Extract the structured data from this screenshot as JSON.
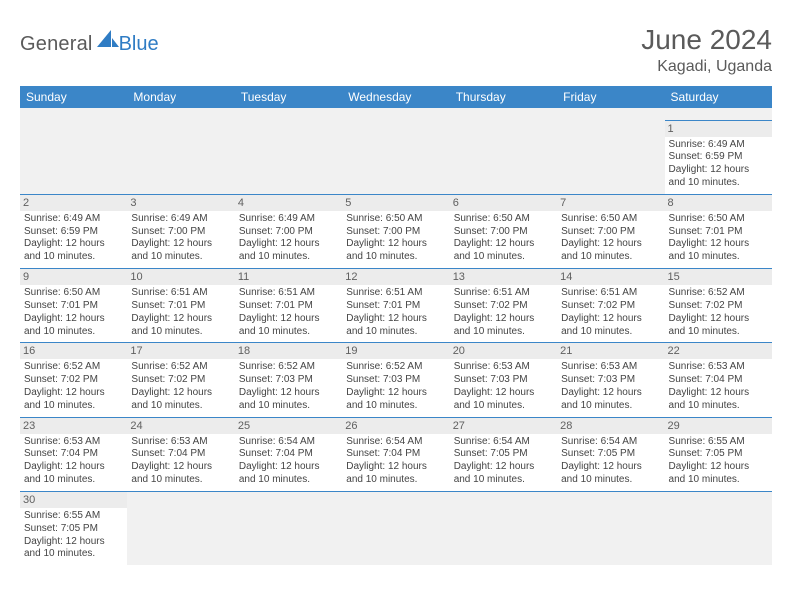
{
  "logo": {
    "text1": "General",
    "text2": "Blue",
    "sail_color": "#2f7cc4"
  },
  "title": "June 2024",
  "location": "Kagadi, Uganda",
  "header": {
    "bg": "#3b86c8",
    "fg": "#ffffff",
    "days": [
      "Sunday",
      "Monday",
      "Tuesday",
      "Wednesday",
      "Thursday",
      "Friday",
      "Saturday"
    ]
  },
  "cell_border_color": "#3b86c8",
  "daynum_bg": "#ececec",
  "blank_bg": "#f1f1f1",
  "weeks": [
    [
      null,
      null,
      null,
      null,
      null,
      null,
      {
        "d": "1",
        "sr": "6:49 AM",
        "ss": "6:59 PM",
        "dl": "12 hours and 10 minutes."
      }
    ],
    [
      {
        "d": "2",
        "sr": "6:49 AM",
        "ss": "6:59 PM",
        "dl": "12 hours and 10 minutes."
      },
      {
        "d": "3",
        "sr": "6:49 AM",
        "ss": "7:00 PM",
        "dl": "12 hours and 10 minutes."
      },
      {
        "d": "4",
        "sr": "6:49 AM",
        "ss": "7:00 PM",
        "dl": "12 hours and 10 minutes."
      },
      {
        "d": "5",
        "sr": "6:50 AM",
        "ss": "7:00 PM",
        "dl": "12 hours and 10 minutes."
      },
      {
        "d": "6",
        "sr": "6:50 AM",
        "ss": "7:00 PM",
        "dl": "12 hours and 10 minutes."
      },
      {
        "d": "7",
        "sr": "6:50 AM",
        "ss": "7:00 PM",
        "dl": "12 hours and 10 minutes."
      },
      {
        "d": "8",
        "sr": "6:50 AM",
        "ss": "7:01 PM",
        "dl": "12 hours and 10 minutes."
      }
    ],
    [
      {
        "d": "9",
        "sr": "6:50 AM",
        "ss": "7:01 PM",
        "dl": "12 hours and 10 minutes."
      },
      {
        "d": "10",
        "sr": "6:51 AM",
        "ss": "7:01 PM",
        "dl": "12 hours and 10 minutes."
      },
      {
        "d": "11",
        "sr": "6:51 AM",
        "ss": "7:01 PM",
        "dl": "12 hours and 10 minutes."
      },
      {
        "d": "12",
        "sr": "6:51 AM",
        "ss": "7:01 PM",
        "dl": "12 hours and 10 minutes."
      },
      {
        "d": "13",
        "sr": "6:51 AM",
        "ss": "7:02 PM",
        "dl": "12 hours and 10 minutes."
      },
      {
        "d": "14",
        "sr": "6:51 AM",
        "ss": "7:02 PM",
        "dl": "12 hours and 10 minutes."
      },
      {
        "d": "15",
        "sr": "6:52 AM",
        "ss": "7:02 PM",
        "dl": "12 hours and 10 minutes."
      }
    ],
    [
      {
        "d": "16",
        "sr": "6:52 AM",
        "ss": "7:02 PM",
        "dl": "12 hours and 10 minutes."
      },
      {
        "d": "17",
        "sr": "6:52 AM",
        "ss": "7:02 PM",
        "dl": "12 hours and 10 minutes."
      },
      {
        "d": "18",
        "sr": "6:52 AM",
        "ss": "7:03 PM",
        "dl": "12 hours and 10 minutes."
      },
      {
        "d": "19",
        "sr": "6:52 AM",
        "ss": "7:03 PM",
        "dl": "12 hours and 10 minutes."
      },
      {
        "d": "20",
        "sr": "6:53 AM",
        "ss": "7:03 PM",
        "dl": "12 hours and 10 minutes."
      },
      {
        "d": "21",
        "sr": "6:53 AM",
        "ss": "7:03 PM",
        "dl": "12 hours and 10 minutes."
      },
      {
        "d": "22",
        "sr": "6:53 AM",
        "ss": "7:04 PM",
        "dl": "12 hours and 10 minutes."
      }
    ],
    [
      {
        "d": "23",
        "sr": "6:53 AM",
        "ss": "7:04 PM",
        "dl": "12 hours and 10 minutes."
      },
      {
        "d": "24",
        "sr": "6:53 AM",
        "ss": "7:04 PM",
        "dl": "12 hours and 10 minutes."
      },
      {
        "d": "25",
        "sr": "6:54 AM",
        "ss": "7:04 PM",
        "dl": "12 hours and 10 minutes."
      },
      {
        "d": "26",
        "sr": "6:54 AM",
        "ss": "7:04 PM",
        "dl": "12 hours and 10 minutes."
      },
      {
        "d": "27",
        "sr": "6:54 AM",
        "ss": "7:05 PM",
        "dl": "12 hours and 10 minutes."
      },
      {
        "d": "28",
        "sr": "6:54 AM",
        "ss": "7:05 PM",
        "dl": "12 hours and 10 minutes."
      },
      {
        "d": "29",
        "sr": "6:55 AM",
        "ss": "7:05 PM",
        "dl": "12 hours and 10 minutes."
      }
    ],
    [
      {
        "d": "30",
        "sr": "6:55 AM",
        "ss": "7:05 PM",
        "dl": "12 hours and 10 minutes."
      },
      null,
      null,
      null,
      null,
      null,
      null
    ]
  ],
  "labels": {
    "sunrise": "Sunrise:",
    "sunset": "Sunset:",
    "daylight": "Daylight:"
  }
}
